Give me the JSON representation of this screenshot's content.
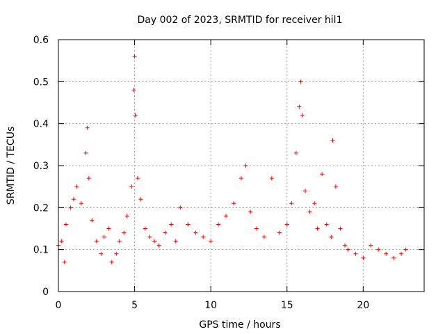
{
  "chart_data": {
    "type": "scatter",
    "title": "Day 002 of 2023, SRMTID for receiver hil1",
    "xlabel": "GPS time / hours",
    "ylabel": "SRMTID / TECUs",
    "xlim": [
      0,
      24
    ],
    "ylim": [
      0,
      0.6
    ],
    "x_ticks": [
      0,
      5,
      10,
      15,
      20
    ],
    "x_tick_labels": [
      "0",
      "5",
      "10",
      "15",
      "20"
    ],
    "y_ticks": [
      0,
      0.1,
      0.2,
      0.3,
      0.4,
      0.5,
      0.6
    ],
    "y_tick_labels": [
      "0",
      "0.1",
      "0.2",
      "0.3",
      "0.4",
      "0.5",
      "0.6"
    ],
    "grid": true,
    "marker": "+",
    "color": "#ff0000",
    "series": [
      {
        "name": "SRMTID",
        "x": [
          0.0,
          0.2,
          0.4,
          0.5,
          0.8,
          1.0,
          1.2,
          1.5,
          1.8,
          1.9,
          2.0,
          2.2,
          2.5,
          2.8,
          3.0,
          3.3,
          3.5,
          3.8,
          4.0,
          4.3,
          4.5,
          4.8,
          4.95,
          5.0,
          5.05,
          5.2,
          5.4,
          5.7,
          6.0,
          6.3,
          6.6,
          7.0,
          7.4,
          7.7,
          8.0,
          8.5,
          9.0,
          9.5,
          10.0,
          10.5,
          11.0,
          11.5,
          12.0,
          12.3,
          12.6,
          13.0,
          13.5,
          14.0,
          14.5,
          15.0,
          15.3,
          15.6,
          15.8,
          15.9,
          16.0,
          16.2,
          16.5,
          16.8,
          17.0,
          17.3,
          17.6,
          17.9,
          18.0,
          18.2,
          18.5,
          18.8,
          19.0,
          19.5,
          20.0,
          20.5,
          21.0,
          21.5,
          22.0,
          22.5,
          22.8
        ],
        "y": [
          0.11,
          0.12,
          0.07,
          0.16,
          0.2,
          0.22,
          0.25,
          0.21,
          0.33,
          0.39,
          0.27,
          0.17,
          0.12,
          0.09,
          0.13,
          0.15,
          0.07,
          0.09,
          0.12,
          0.14,
          0.18,
          0.25,
          0.48,
          0.56,
          0.42,
          0.27,
          0.22,
          0.15,
          0.13,
          0.12,
          0.11,
          0.14,
          0.16,
          0.12,
          0.2,
          0.16,
          0.14,
          0.13,
          0.12,
          0.16,
          0.18,
          0.21,
          0.27,
          0.3,
          0.19,
          0.15,
          0.13,
          0.27,
          0.14,
          0.16,
          0.21,
          0.33,
          0.44,
          0.5,
          0.42,
          0.24,
          0.19,
          0.21,
          0.15,
          0.28,
          0.16,
          0.13,
          0.36,
          0.25,
          0.15,
          0.11,
          0.1,
          0.09,
          0.08,
          0.11,
          0.1,
          0.09,
          0.08,
          0.09,
          0.1
        ]
      }
    ]
  }
}
